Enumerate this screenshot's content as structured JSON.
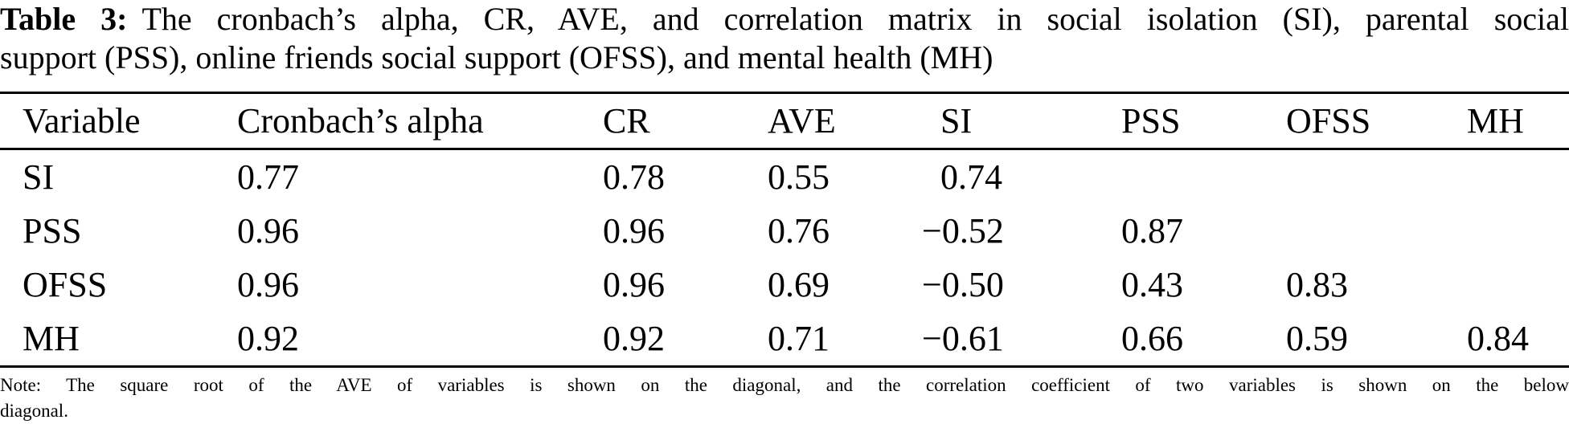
{
  "caption": {
    "label": "Table 3:",
    "line1": "The cronbach’s alpha, CR, AVE, and correlation matrix in social isolation (SI), parental social",
    "line2": "support (PSS), online friends social support (OFSS), and mental health (MH)"
  },
  "table": {
    "headers": [
      "Variable",
      "Cronbach’s alpha",
      "CR",
      "AVE",
      "SI",
      "PSS",
      "OFSS",
      "MH"
    ],
    "rows": [
      {
        "cells": [
          "SI",
          "0.77",
          "0.78",
          "0.55",
          "0.74",
          "",
          "",
          ""
        ]
      },
      {
        "cells": [
          "PSS",
          "0.96",
          "0.96",
          "0.76",
          "−0.52",
          "0.87",
          "",
          ""
        ]
      },
      {
        "cells": [
          "OFSS",
          "0.96",
          "0.96",
          "0.69",
          "−0.50",
          "0.43",
          "0.83",
          ""
        ]
      },
      {
        "cells": [
          "MH",
          "0.92",
          "0.92",
          "0.71",
          "−0.61",
          "0.66",
          "0.59",
          "0.84"
        ]
      }
    ]
  },
  "note": {
    "line1": "Note: The square root of the AVE of variables is shown on the diagonal, and the correlation coefficient of two variables is shown on the below",
    "line2": "diagonal."
  },
  "colors": {
    "text": "#000000",
    "background": "#ffffff",
    "rule": "#000000"
  }
}
